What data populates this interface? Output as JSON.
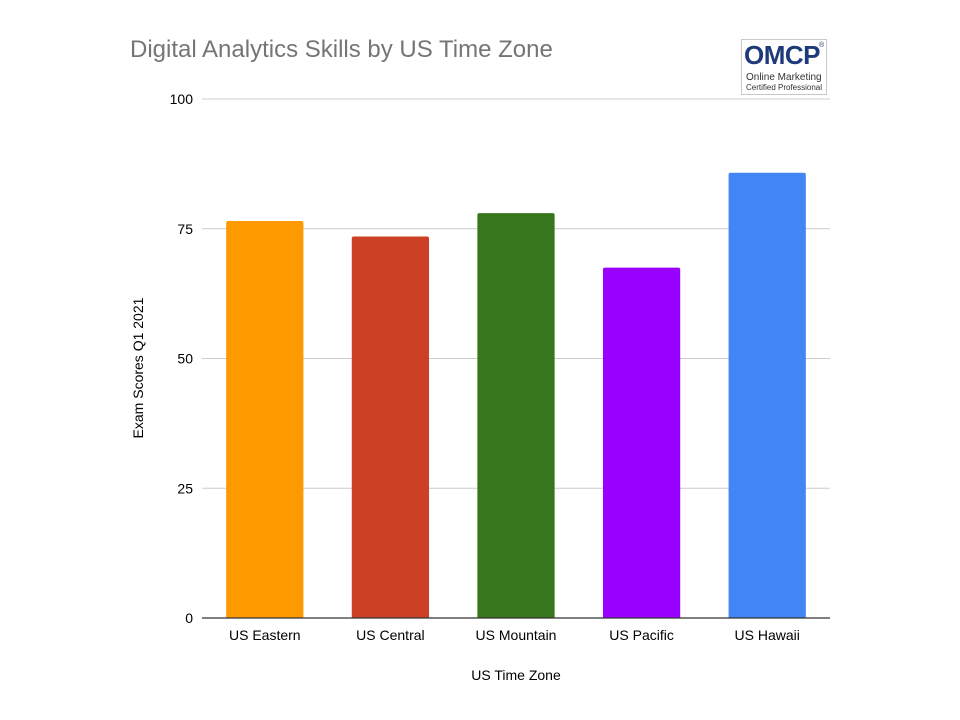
{
  "chart_data": {
    "type": "bar",
    "title": "Digital Analytics Skills by US Time Zone",
    "xlabel": "US Time Zone",
    "ylabel": "Exam Scores Q1 2021",
    "categories": [
      "US Eastern",
      "US Central",
      "US Mountain",
      "US Pacific",
      "US Hawaii"
    ],
    "values": [
      76.5,
      73.5,
      78,
      67.5,
      85.8
    ],
    "colors": [
      "#ff9900",
      "#cc4125",
      "#38761d",
      "#9900ff",
      "#4285f4"
    ],
    "ylim": [
      0,
      100
    ],
    "yticks": [
      0,
      25,
      50,
      75,
      100
    ],
    "grid": true,
    "legend": "none"
  },
  "logo": {
    "mark": "OMCP",
    "registered": "®",
    "line1": "Online Marketing",
    "line2": "Certified Professional"
  }
}
